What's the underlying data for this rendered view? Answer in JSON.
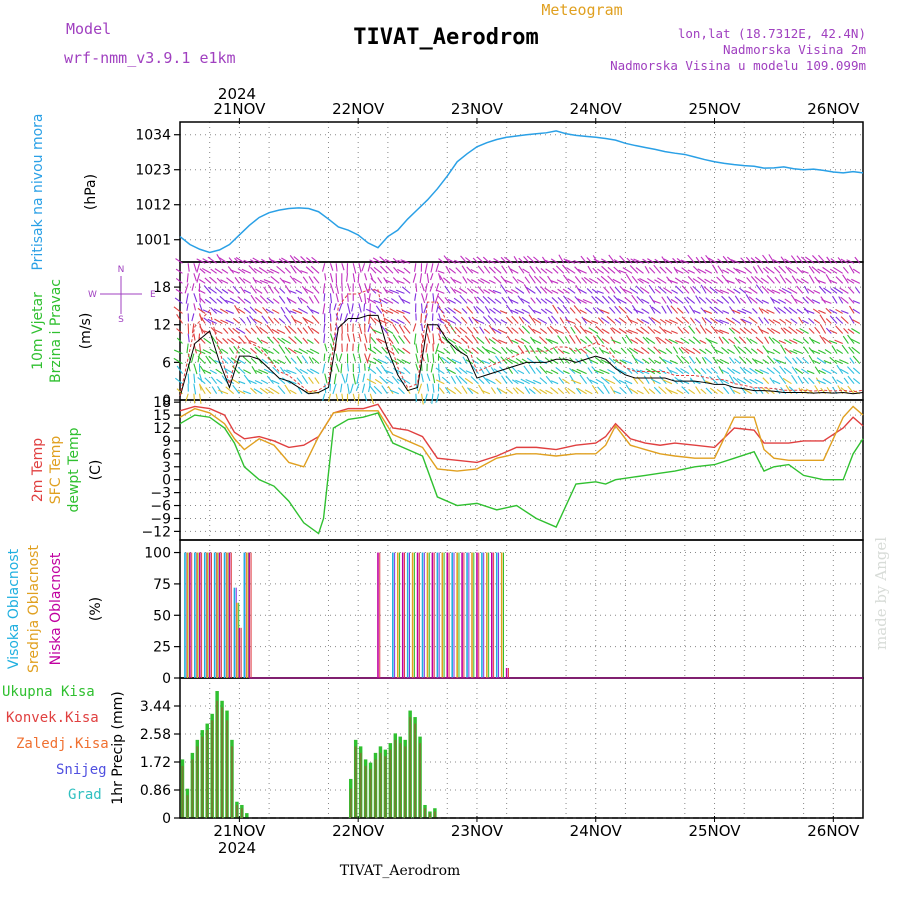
{
  "header": {
    "main_title": "TIVAT_Aerodrom",
    "meteogram_label": "Meteogram",
    "model_label": "Model",
    "model_name": "wrf-nmm_v3.9.1 e1km",
    "lonlat": "lon,lat (18.7312E, 42.4N)",
    "altitude": "Nadmorska Visina 2m",
    "model_altitude": "Nadmorska Visina u modelu 109.099m",
    "bottom_label": "TIVAT_Aerodrom",
    "watermark": "made by Angel"
  },
  "colors": {
    "pressure": "#2aa0e6",
    "temp2m": "#e04040",
    "sfc_temp": "#e0a020",
    "dewpoint": "#30c030",
    "high_cloud": "#20b0e0",
    "mid_cloud": "#e0a020",
    "low_cloud": "#c000a0",
    "precip_total": "#30c030",
    "precip_conv": "#e04040",
    "purple_text": "#a040c0",
    "orange_text": "#e0a020"
  },
  "chart_data": [
    {
      "type": "line",
      "panel": "pressure",
      "title": "",
      "ylabel": "(hPa)",
      "side_label": "Pritisak na nivou mora",
      "yticks": [
        1001,
        1012,
        1023,
        1034
      ],
      "ylim": [
        994,
        1038
      ],
      "x_top_year": "2024",
      "x_ticks": [
        "21NOV",
        "22NOV",
        "23NOV",
        "24NOV",
        "25NOV",
        "26NOV"
      ],
      "xlim": [
        0,
        138
      ],
      "grid": true,
      "series": [
        {
          "x": [
            0,
            2,
            4,
            6,
            8,
            10,
            12,
            14,
            16,
            18,
            20,
            22,
            24,
            26,
            28,
            30,
            32,
            34,
            36,
            38,
            40,
            42,
            44,
            46,
            48,
            50,
            52,
            54,
            56,
            58,
            60,
            62,
            64,
            66,
            68,
            70,
            72,
            74,
            76,
            78,
            80,
            82,
            84,
            86,
            88,
            90,
            92,
            94,
            96,
            98,
            100,
            102,
            104,
            106,
            108,
            110,
            112,
            114,
            116,
            118,
            120,
            122,
            124,
            126,
            128,
            130,
            132,
            134,
            136,
            138
          ],
          "y": [
            1002,
            999.5,
            998,
            997,
            997.8,
            999.5,
            1002.5,
            1005.5,
            1008,
            1009.5,
            1010.3,
            1010.8,
            1011.0,
            1010.8,
            1009.8,
            1007.5,
            1005,
            1004,
            1002.5,
            1000,
            998.5,
            1002,
            1004,
            1007.5,
            1010.5,
            1013.5,
            1017,
            1021,
            1025.5,
            1028,
            1030.2,
            1031.5,
            1032.5,
            1033.2,
            1033.6,
            1034.0,
            1034.3,
            1034.6,
            1035.2,
            1034.3,
            1033.8,
            1033.5,
            1033.2,
            1032.8,
            1032.3,
            1031.3,
            1030.6,
            1030.0,
            1029.4,
            1028.7,
            1028.2,
            1027.8,
            1027.0,
            1026.2,
            1025.5,
            1025.0,
            1024.6,
            1024.3,
            1024.1,
            1023.5,
            1023.6,
            1023.9,
            1023.3,
            1023.0,
            1023.2,
            1022.8,
            1022.3,
            1022.0,
            1022.4,
            1022.0
          ]
        }
      ]
    },
    {
      "type": "line",
      "panel": "wind",
      "ylabel": "(m/s)",
      "side_label": [
        "10m Vjetar",
        "Brzina i Pravac"
      ],
      "compass_labels": [
        "N",
        "W",
        "E",
        "S"
      ],
      "yticks": [
        0,
        6,
        12,
        18
      ],
      "ylim": [
        0,
        22
      ],
      "xlim": [
        0,
        138
      ],
      "grid": true,
      "series": [
        {
          "name": "speed",
          "x": [
            0,
            3,
            6,
            8,
            10,
            12,
            14,
            16,
            18,
            20,
            22,
            24,
            26,
            28,
            30,
            32,
            34,
            36,
            38,
            40,
            42,
            44,
            46,
            48,
            50,
            52,
            54,
            56,
            58,
            60,
            62,
            64,
            66,
            68,
            70,
            72,
            74,
            76,
            78,
            80,
            82,
            84,
            86,
            88,
            90,
            92,
            94,
            96,
            98,
            100,
            102,
            104,
            106,
            108,
            110,
            112,
            114,
            116,
            118,
            120,
            122,
            124,
            126,
            128,
            130,
            132,
            134,
            136,
            138
          ],
          "y": [
            0.5,
            9,
            11,
            6,
            2,
            7,
            7,
            6.5,
            5,
            3.5,
            3,
            2,
            1,
            1.2,
            2,
            11.5,
            13,
            13,
            13.5,
            13.5,
            8,
            4,
            1.5,
            2,
            12,
            12,
            9.5,
            8,
            7,
            3.5,
            4,
            4.5,
            5,
            5.5,
            6,
            6,
            6,
            6.5,
            6.5,
            6,
            6.5,
            7,
            6.5,
            5,
            4,
            3.5,
            3.5,
            3.5,
            3.5,
            3,
            3,
            3,
            2.8,
            2.5,
            2.5,
            2,
            1.8,
            1.5,
            1.5,
            1.4,
            1.2,
            1.2,
            1.2,
            1.1,
            1.2,
            1.1,
            1.2,
            1.0,
            1.2
          ]
        }
      ],
      "wind_barb_colors": [
        "#e0c030",
        "#30c0e0",
        "#30c030",
        "#e04040",
        "#8030e0",
        "#c030c0"
      ]
    },
    {
      "type": "line",
      "panel": "temperature",
      "ylabel": "(C)",
      "side_label": [
        "2m Temp",
        "SFC Temp",
        "dewpt Temp"
      ],
      "yticks": [
        -12,
        -9,
        -6,
        -3,
        0,
        3,
        6,
        9,
        12,
        15,
        18
      ],
      "ylim": [
        -14,
        18.5
      ],
      "xlim": [
        0,
        138
      ],
      "grid": true,
      "series": [
        {
          "name": "2m Temp",
          "x": [
            0,
            3,
            6,
            9,
            11,
            13,
            16,
            19,
            22,
            25,
            28,
            31,
            34,
            37,
            40,
            43,
            46,
            49,
            52,
            56,
            60,
            64,
            68,
            72,
            76,
            80,
            84,
            86,
            88,
            91,
            94,
            97,
            100,
            104,
            108,
            112,
            116,
            118,
            120,
            123,
            126,
            130,
            134,
            136,
            138
          ],
          "y": [
            16,
            17,
            16.5,
            15,
            11,
            9.5,
            10,
            9,
            7.5,
            8,
            10,
            15.5,
            16.5,
            16.5,
            17.5,
            12,
            11.5,
            10,
            5,
            4.5,
            4,
            5.5,
            7.5,
            7.5,
            7,
            8,
            8.5,
            10,
            13,
            9.5,
            8.5,
            8,
            8.5,
            8,
            7.5,
            12,
            11.5,
            8.5,
            8.5,
            8.5,
            9,
            9,
            12,
            14.5,
            12.5
          ]
        },
        {
          "name": "SFC Temp",
          "x": [
            0,
            3,
            6,
            9,
            11,
            13,
            16,
            19,
            22,
            25,
            28,
            31,
            34,
            37,
            40,
            43,
            46,
            49,
            52,
            56,
            60,
            64,
            68,
            72,
            76,
            80,
            84,
            86,
            88,
            91,
            94,
            97,
            100,
            104,
            108,
            112,
            116,
            118,
            120,
            123,
            126,
            130,
            134,
            136,
            138
          ],
          "y": [
            14.5,
            16.5,
            15.5,
            13,
            9.5,
            7,
            9.5,
            8,
            4,
            3,
            10,
            15.5,
            16,
            16,
            16,
            10.5,
            9,
            7.5,
            2.5,
            2,
            2.5,
            5,
            6,
            6,
            5.5,
            6,
            6,
            8,
            12.5,
            8,
            7,
            6,
            5.5,
            5,
            5,
            14.5,
            14.5,
            7,
            5,
            4.5,
            4.5,
            4.5,
            14.5,
            17,
            15
          ]
        },
        {
          "name": "dewpt Temp",
          "x": [
            0,
            3,
            6,
            9,
            11,
            13,
            16,
            19,
            22,
            25,
            28,
            29,
            31,
            34,
            37,
            40,
            43,
            46,
            49,
            52,
            56,
            60,
            64,
            68,
            72,
            76,
            80,
            84,
            86,
            88,
            91,
            94,
            97,
            100,
            104,
            108,
            112,
            116,
            118,
            120,
            123,
            126,
            130,
            134,
            136,
            138
          ],
          "y": [
            13,
            15,
            14.5,
            12,
            8.5,
            3,
            0,
            -1.5,
            -5,
            -10,
            -12.5,
            -9,
            12,
            14,
            14.5,
            15.5,
            8.5,
            7,
            5.5,
            -4,
            -6,
            -5.5,
            -7,
            -6,
            -9,
            -11,
            -1,
            -0.5,
            -1,
            0,
            0.5,
            1,
            1.5,
            2,
            3,
            3.5,
            5,
            6.5,
            2,
            3,
            3.5,
            1,
            0,
            0,
            6,
            9.5
          ]
        }
      ]
    },
    {
      "type": "bar",
      "panel": "clouds",
      "ylabel": "(%)",
      "side_label": [
        "Visoka Oblacnost",
        "Srednja Oblacnost",
        "Niska Oblacnost"
      ],
      "yticks": [
        0,
        25,
        50,
        75,
        100
      ],
      "ylim": [
        0,
        110
      ],
      "xlim": [
        0,
        138
      ],
      "grid": true,
      "series": [
        {
          "name": "Visoka Oblacnost",
          "x": [
            1,
            3,
            5,
            7,
            9,
            11,
            13,
            43,
            46,
            49,
            52,
            55,
            58,
            61,
            64
          ],
          "values": [
            100,
            100,
            100,
            100,
            100,
            72,
            100,
            100,
            100,
            100,
            100,
            100,
            100,
            100,
            100
          ]
        },
        {
          "name": "Srednja Oblacnost",
          "x": [
            1.5,
            3.5,
            5.5,
            7.5,
            9.5,
            11.5,
            13.5,
            44,
            47,
            50,
            53,
            56,
            59,
            62,
            65
          ],
          "values": [
            100,
            100,
            100,
            100,
            100,
            60,
            100,
            100,
            100,
            100,
            100,
            100,
            100,
            100,
            100
          ]
        },
        {
          "name": "Niska Oblacnost",
          "x": [
            2,
            4,
            6,
            8,
            10,
            12,
            14,
            40,
            45,
            48,
            51,
            54,
            57,
            60,
            63,
            66
          ],
          "values": [
            100,
            100,
            100,
            100,
            100,
            40,
            100,
            100,
            100,
            100,
            100,
            100,
            100,
            100,
            100,
            8
          ]
        }
      ]
    },
    {
      "type": "bar",
      "panel": "precip",
      "ylabel": "1hr Precip (mm)",
      "side_label": [
        "Ukupna Kisa",
        "Konvek.Kisa",
        "Zaledj.Kisa",
        "Snijeg",
        "Grad"
      ],
      "side_label_colors": [
        "#30c030",
        "#e04040",
        "#f07030",
        "#5050e0",
        "#30c0c0"
      ],
      "yticks": [
        0,
        0.86,
        1.72,
        2.58,
        3.44
      ],
      "ylim": [
        0,
        4.3
      ],
      "x_bottom_ticks": [
        "21NOV",
        "22NOV",
        "23NOV",
        "24NOV",
        "25NOV",
        "26NOV"
      ],
      "x_bottom_year": "2024",
      "xlim": [
        0,
        138
      ],
      "grid": true,
      "series": [
        {
          "name": "Ukupna Kisa",
          "x": [
            0.5,
            1.5,
            2.5,
            3.5,
            4.5,
            5.5,
            6.5,
            7.5,
            8.5,
            9.5,
            10.5,
            11.5,
            12.5,
            13.5,
            34.5,
            35.5,
            36.5,
            37.5,
            38.5,
            39.5,
            40.5,
            41.5,
            42.5,
            43.5,
            44.5,
            45.5,
            46.5,
            47.5,
            48.5,
            49.5,
            50.5,
            51.5,
            52.5,
            53.5
          ],
          "values": [
            1.8,
            0.9,
            2.0,
            2.4,
            2.7,
            2.9,
            3.2,
            3.9,
            3.6,
            3.3,
            2.4,
            0.5,
            0.4,
            0.15,
            1.2,
            2.4,
            2.2,
            1.8,
            1.7,
            2.0,
            2.2,
            2.1,
            2.3,
            2.6,
            2.5,
            2.4,
            3.3,
            3.1,
            2.5,
            0.4,
            0.2,
            0.3,
            0.0,
            0.0
          ]
        },
        {
          "name": "Konvek.Kisa",
          "x": [
            0.5,
            1.5,
            2.5,
            3.5,
            4.5,
            5.5,
            6.5,
            7.5,
            8.5,
            9.5,
            10.5,
            11.5,
            12.5,
            34.5,
            35.5,
            36.5,
            37.5,
            38.5,
            39.5,
            40.5,
            41.5,
            42.5,
            43.5,
            44.5,
            45.5,
            46.5,
            47.5,
            48.5,
            49.5,
            50.5,
            51.5
          ],
          "values": [
            1.6,
            0.7,
            1.8,
            2.2,
            2.5,
            2.7,
            3.0,
            3.6,
            3.4,
            3.0,
            2.2,
            0.4,
            0.3,
            0.9,
            2.2,
            2.0,
            1.6,
            1.5,
            1.8,
            2.0,
            1.9,
            2.1,
            2.4,
            2.3,
            2.2,
            3.1,
            2.9,
            2.3,
            0.3,
            0.15,
            0.2
          ]
        }
      ]
    }
  ]
}
